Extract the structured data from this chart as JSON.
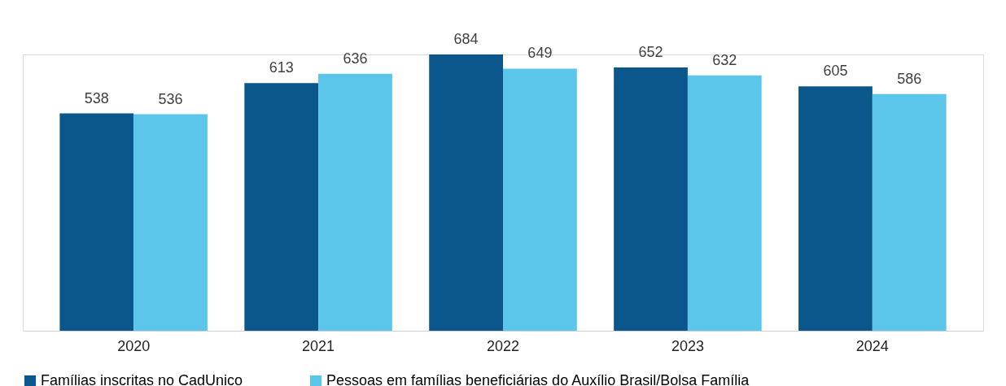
{
  "chart_data": {
    "type": "bar",
    "categories": [
      "2020",
      "2021",
      "2022",
      "2023",
      "2024"
    ],
    "series": [
      {
        "name": "Famílias inscritas no CadUnico",
        "color": "#0b568a",
        "values": [
          538,
          613,
          684,
          652,
          605
        ]
      },
      {
        "name": "Pessoas em famílias beneficiárias do Auxílio Brasil/Bolsa Família",
        "color": "#5bc5ea",
        "values": [
          536,
          636,
          649,
          632,
          586
        ]
      }
    ],
    "data_labels": true,
    "grid": false,
    "legend": "bottom",
    "tick_labels": "x"
  }
}
